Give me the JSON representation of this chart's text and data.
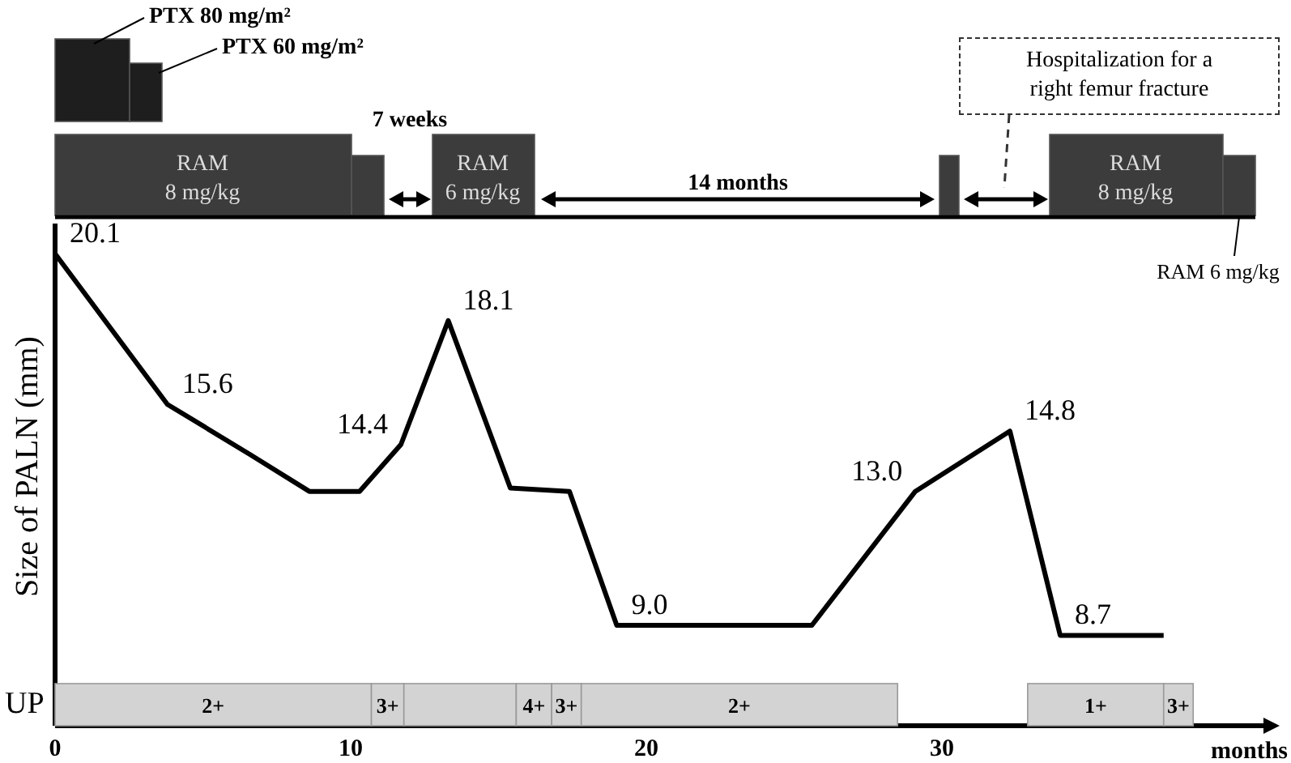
{
  "chart_data": {
    "type": "line",
    "xlabel": "months",
    "ylabel": "Size of PALN (mm)",
    "xlim": [
      0,
      40
    ],
    "xticks": [
      0,
      10,
      20,
      30
    ],
    "ylim": [
      6,
      21
    ],
    "tick_labels": "x",
    "line_style": "solid",
    "x": [
      0,
      3.8,
      6.6,
      8.6,
      10.3,
      11.7,
      13.3,
      15.4,
      17.4,
      19.0,
      25.6,
      29.1,
      32.3,
      34.0,
      37.5
    ],
    "series": [
      {
        "color": "#000000",
        "values": [
          20.1,
          15.6,
          14.1,
          13.0,
          13.0,
          14.4,
          18.1,
          13.1,
          13.0,
          9.0,
          9.0,
          13.0,
          14.8,
          8.7,
          8.7
        ],
        "value_labels": [
          "20.1",
          "15.6",
          null,
          null,
          null,
          "14.4",
          "18.1",
          null,
          null,
          "9.0",
          null,
          "13.0",
          "14.8",
          "8.7",
          null
        ]
      }
    ],
    "bands": [
      {
        "axis": "x",
        "from": 0,
        "to": 10.7,
        "label": "2+",
        "color": "#d3d3d3"
      },
      {
        "axis": "x",
        "from": 10.7,
        "to": 11.8,
        "label": "3+",
        "color": "#d3d3d3"
      },
      {
        "axis": "x",
        "from": 11.8,
        "to": 15.6,
        "label": null,
        "color": "#d3d3d3"
      },
      {
        "axis": "x",
        "from": 15.6,
        "to": 16.8,
        "label": "4+",
        "color": "#d3d3d3"
      },
      {
        "axis": "x",
        "from": 16.8,
        "to": 17.8,
        "label": "3+",
        "color": "#d3d3d3"
      },
      {
        "axis": "x",
        "from": 17.8,
        "to": 28.5,
        "label": "2+",
        "color": "#d3d3d3"
      },
      {
        "axis": "x",
        "from": 32.9,
        "to": 37.5,
        "label": "1+",
        "color": "#d3d3d3"
      },
      {
        "axis": "x",
        "from": 37.5,
        "to": 38.5,
        "label": "3+",
        "color": "#d3d3d3"
      }
    ],
    "annotations": [
      "PTX  80 mg/m²",
      "PTX  60 mg/m²",
      "RAM 8 mg/kg",
      "RAM 6 mg/kg",
      "RAM 8 mg/kg",
      "RAM  6 mg/kg",
      "7 weeks",
      "14 months",
      "Hospitalization for a right femur fracture",
      "UP"
    ]
  }
}
